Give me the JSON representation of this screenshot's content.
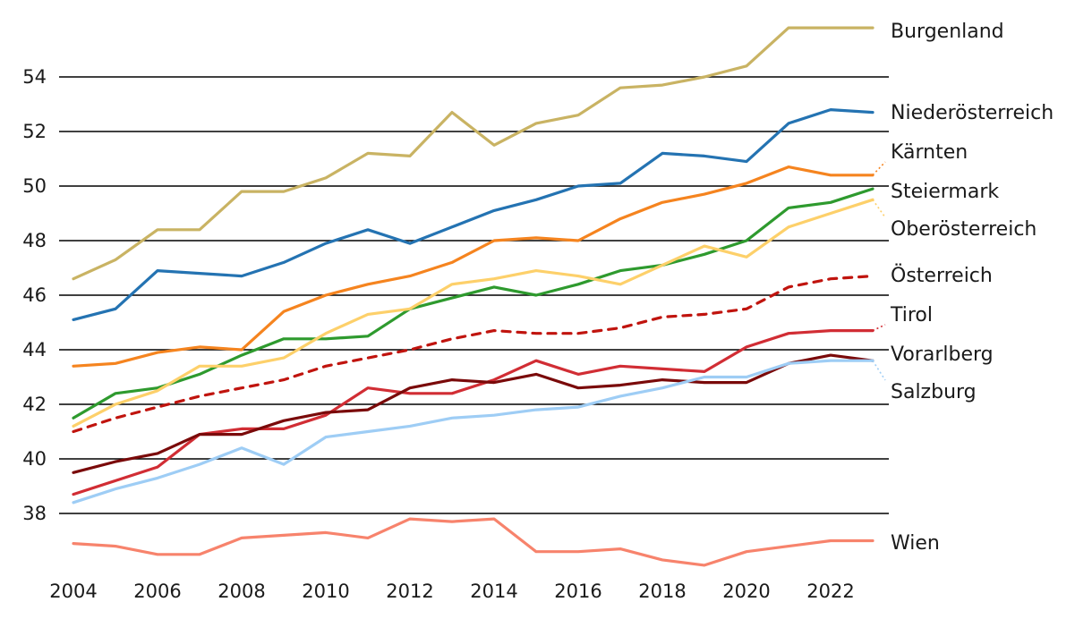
{
  "chart_data": {
    "type": "line",
    "title": "",
    "xlabel": "",
    "ylabel": "",
    "x": [
      2004,
      2005,
      2006,
      2007,
      2008,
      2009,
      2010,
      2011,
      2012,
      2013,
      2014,
      2015,
      2016,
      2017,
      2018,
      2019,
      2020,
      2021,
      2022,
      2023
    ],
    "x_ticks": [
      "2004",
      "2006",
      "2008",
      "2010",
      "2012",
      "2014",
      "2016",
      "2018",
      "2020",
      "2022"
    ],
    "y_ticks": [
      "38",
      "40",
      "42",
      "44",
      "46",
      "48",
      "50",
      "52",
      "54"
    ],
    "ylim": [
      36.1,
      55.9
    ],
    "grid": true,
    "legend": "inline labels at right end of lines",
    "series": [
      {
        "name": "Burgenland",
        "color": "#c9b363",
        "dashed": false,
        "values": [
          46.6,
          47.3,
          48.4,
          48.4,
          49.8,
          49.8,
          50.3,
          51.2,
          51.1,
          52.7,
          51.5,
          52.3,
          52.6,
          53.6,
          53.7,
          54.0,
          54.4,
          55.8,
          55.8,
          55.8
        ]
      },
      {
        "name": "Niederösterreich",
        "color": "#2473b2",
        "dashed": false,
        "values": [
          45.1,
          45.5,
          46.9,
          46.8,
          46.7,
          47.2,
          47.9,
          48.4,
          47.9,
          48.5,
          49.1,
          49.5,
          50.0,
          50.1,
          51.2,
          51.1,
          50.9,
          52.3,
          52.8,
          52.7
        ]
      },
      {
        "name": "Kärnten",
        "color": "#f5841f",
        "dashed": false,
        "values": [
          43.4,
          43.5,
          43.9,
          44.1,
          44.0,
          45.4,
          46.0,
          46.4,
          46.7,
          47.2,
          48.0,
          48.1,
          48.0,
          48.8,
          49.4,
          49.7,
          50.1,
          50.7,
          50.4,
          50.4
        ]
      },
      {
        "name": "Steiermark",
        "color": "#2e9a2e",
        "dashed": false,
        "values": [
          41.5,
          42.4,
          42.6,
          43.1,
          43.8,
          44.4,
          44.4,
          44.5,
          45.5,
          45.9,
          46.3,
          46.0,
          46.4,
          46.9,
          47.1,
          47.5,
          48.0,
          49.2,
          49.4,
          49.9
        ]
      },
      {
        "name": "Oberösterreich",
        "color": "#fdd06a",
        "dashed": false,
        "values": [
          41.2,
          42.0,
          42.5,
          43.4,
          43.4,
          43.7,
          44.6,
          45.3,
          45.5,
          46.4,
          46.6,
          46.9,
          46.7,
          46.4,
          47.1,
          47.8,
          47.4,
          48.5,
          49.0,
          49.5
        ]
      },
      {
        "name": "Österreich",
        "color": "#c0140e",
        "dashed": true,
        "values": [
          41.0,
          41.5,
          41.9,
          42.3,
          42.6,
          42.9,
          43.4,
          43.7,
          44.0,
          44.4,
          44.7,
          44.6,
          44.6,
          44.8,
          45.2,
          45.3,
          45.5,
          46.3,
          46.6,
          46.7
        ]
      },
      {
        "name": "Tirol",
        "color": "#d12d34",
        "dashed": false,
        "values": [
          38.7,
          39.2,
          39.7,
          40.9,
          41.1,
          41.1,
          41.6,
          42.6,
          42.4,
          42.4,
          42.9,
          43.6,
          43.1,
          43.4,
          43.3,
          43.2,
          44.1,
          44.6,
          44.7,
          44.7
        ]
      },
      {
        "name": "Vorarlberg",
        "color": "#7a0a0a",
        "dashed": false,
        "values": [
          39.5,
          39.9,
          40.2,
          40.9,
          40.9,
          41.4,
          41.7,
          41.8,
          42.6,
          42.9,
          42.8,
          43.1,
          42.6,
          42.7,
          42.9,
          42.8,
          42.8,
          43.5,
          43.8,
          43.6
        ]
      },
      {
        "name": "Salzburg",
        "color": "#9ecdf5",
        "dashed": false,
        "values": [
          38.4,
          38.9,
          39.3,
          39.8,
          40.4,
          39.8,
          40.8,
          41.0,
          41.2,
          41.5,
          41.6,
          41.8,
          41.9,
          42.3,
          42.6,
          43.0,
          43.0,
          43.5,
          43.6,
          43.6
        ]
      },
      {
        "name": "Wien",
        "color": "#f7836c",
        "dashed": false,
        "values": [
          36.9,
          36.8,
          36.5,
          36.5,
          37.1,
          37.2,
          37.3,
          37.1,
          37.8,
          37.7,
          37.8,
          36.6,
          36.6,
          36.7,
          36.3,
          36.1,
          36.6,
          36.8,
          37.0,
          37.0
        ]
      }
    ]
  }
}
